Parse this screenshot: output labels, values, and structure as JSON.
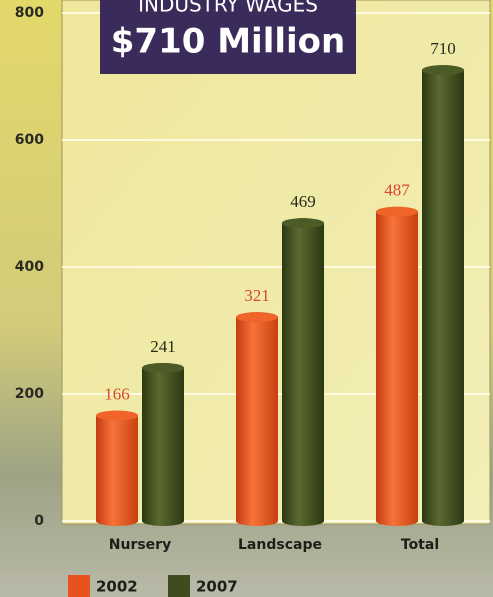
{
  "chart_data": {
    "type": "bar",
    "title": "INDUSTRY WAGES",
    "subtitle": "$710 Million",
    "categories": [
      "Nursery",
      "Landscape",
      "Total"
    ],
    "series": [
      {
        "name": "2002",
        "color": "#e8521c",
        "values": [
          166,
          321,
          487
        ]
      },
      {
        "name": "2007",
        "color": "#3f4c1f",
        "values": [
          241,
          469,
          710
        ]
      }
    ],
    "ylim": [
      0,
      800
    ],
    "yticks": [
      0,
      200,
      400,
      600,
      800
    ],
    "grid": true
  }
}
